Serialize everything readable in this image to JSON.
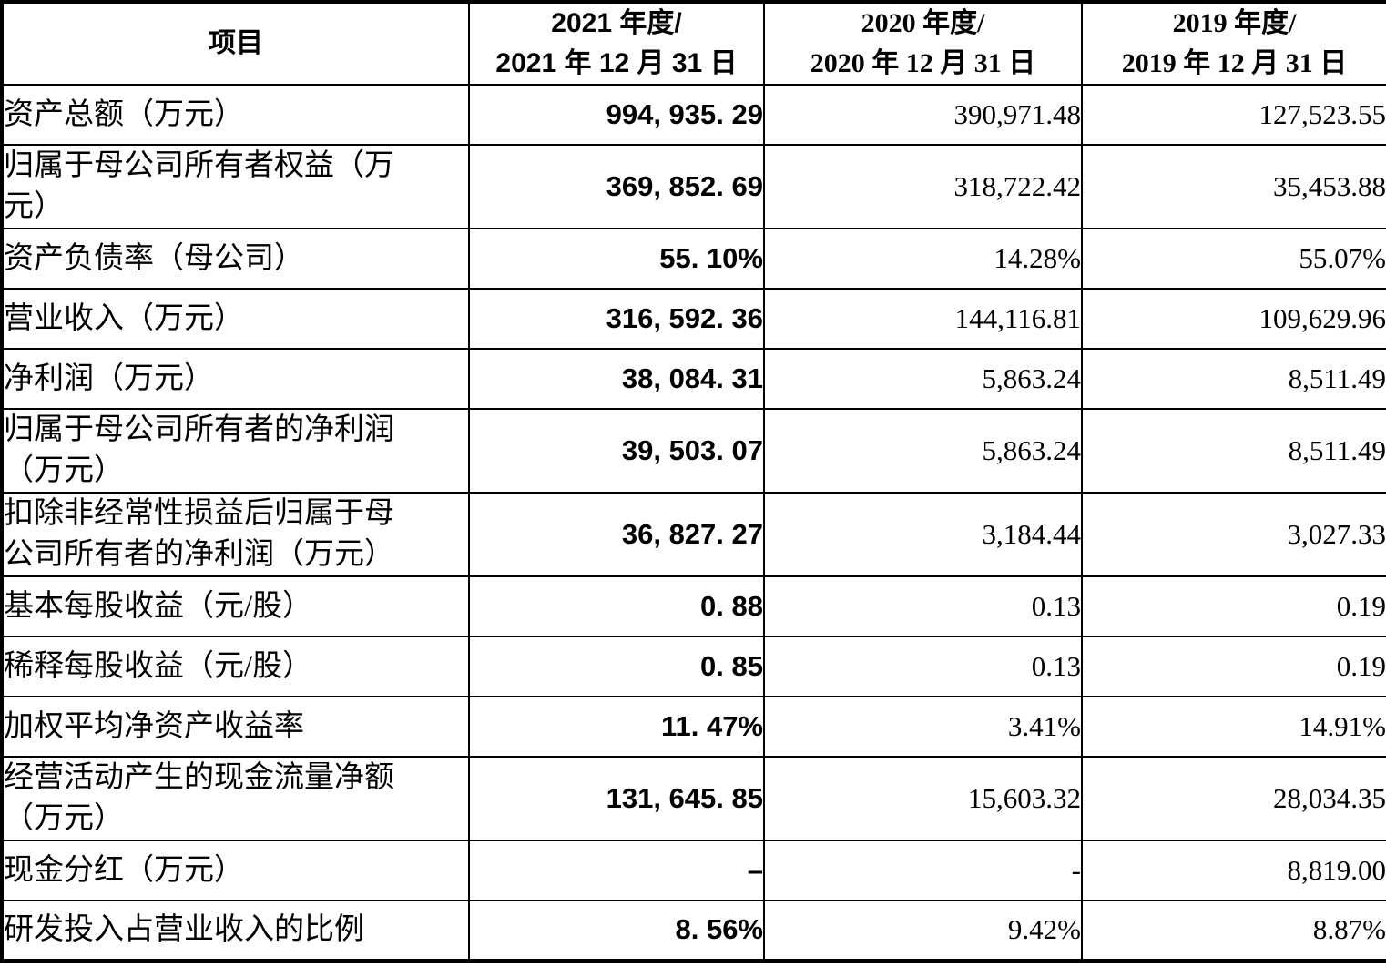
{
  "page": {
    "background_color": "#ffffff",
    "text_color": "#000000",
    "border_color": "#000000"
  },
  "table": {
    "header": {
      "item": "项目",
      "periods": [
        {
          "line1": "2021 年度/",
          "line2": "2021 年 12 月 31 日"
        },
        {
          "line1": "2020 年度/",
          "line2": "2020 年 12 月 31 日"
        },
        {
          "line1": "2019 年度/",
          "line2": "2019 年 12 月 31 日"
        }
      ]
    },
    "rows": [
      {
        "label": "资产总额（万元）",
        "v2021": "994, 935. 29",
        "v2020": "390,971.48",
        "v2019": "127,523.55"
      },
      {
        "label": "归属于母公司所有者权益（万\n元）",
        "v2021": "369, 852. 69",
        "v2020": "318,722.42",
        "v2019": "35,453.88"
      },
      {
        "label": "资产负债率（母公司）",
        "v2021": "55. 10%",
        "v2020": "14.28%",
        "v2019": "55.07%"
      },
      {
        "label": "营业收入（万元）",
        "v2021": "316, 592. 36",
        "v2020": "144,116.81",
        "v2019": "109,629.96"
      },
      {
        "label": "净利润（万元）",
        "v2021": "38, 084. 31",
        "v2020": "5,863.24",
        "v2019": "8,511.49"
      },
      {
        "label": "归属于母公司所有者的净利润\n（万元）",
        "v2021": "39, 503. 07",
        "v2020": "5,863.24",
        "v2019": "8,511.49"
      },
      {
        "label": "扣除非经常性损益后归属于母\n公司所有者的净利润（万元）",
        "v2021": "36, 827. 27",
        "v2020": "3,184.44",
        "v2019": "3,027.33"
      },
      {
        "label": "基本每股收益（元/股）",
        "v2021": "0. 88",
        "v2020": "0.13",
        "v2019": "0.19"
      },
      {
        "label": "稀释每股收益（元/股）",
        "v2021": "0. 85",
        "v2020": "0.13",
        "v2019": "0.19"
      },
      {
        "label": "加权平均净资产收益率",
        "v2021": "11. 47%",
        "v2020": "3.41%",
        "v2019": "14.91%"
      },
      {
        "label": "经营活动产生的现金流量净额\n（万元）",
        "v2021": "131, 645. 85",
        "v2020": "15,603.32",
        "v2019": "28,034.35"
      },
      {
        "label": "现金分红（万元）",
        "v2021": "–",
        "v2020": "-",
        "v2019": "8,819.00"
      },
      {
        "label": "研发投入占营业收入的比例",
        "v2021": "8. 56%",
        "v2020": "9.42%",
        "v2019": "8.87%"
      }
    ]
  }
}
